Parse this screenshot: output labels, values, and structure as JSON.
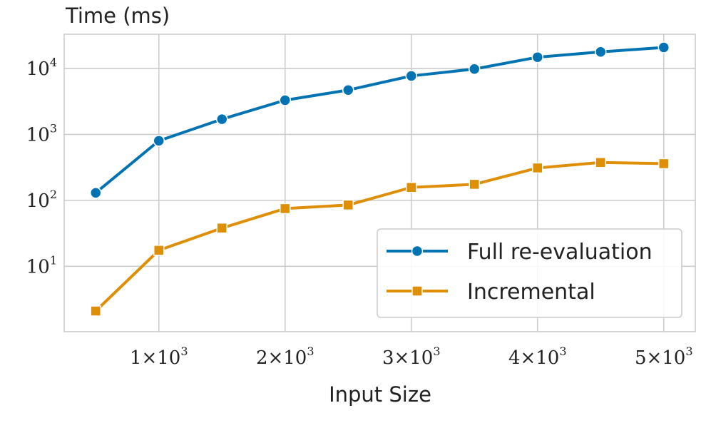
{
  "chart_data": {
    "type": "line",
    "title": "",
    "xlabel": "Input Size",
    "ylabel": "Time (ms)",
    "yscale": "log",
    "grid": true,
    "legend_position": "lower-right",
    "xlim": [
      250,
      5250
    ],
    "ylim": [
      1.02,
      33000
    ],
    "x_ticks": [
      {
        "value": 1000,
        "mant": "1×10",
        "exp": "3"
      },
      {
        "value": 2000,
        "mant": "2×10",
        "exp": "3"
      },
      {
        "value": 3000,
        "mant": "3×10",
        "exp": "3"
      },
      {
        "value": 4000,
        "mant": "4×10",
        "exp": "3"
      },
      {
        "value": 5000,
        "mant": "5×10",
        "exp": "3"
      }
    ],
    "y_ticks": [
      {
        "value": 10,
        "mant": "10",
        "exp": "1"
      },
      {
        "value": 100,
        "mant": "10",
        "exp": "2"
      },
      {
        "value": 1000,
        "mant": "10",
        "exp": "3"
      },
      {
        "value": 10000,
        "mant": "10",
        "exp": "4"
      }
    ],
    "x": [
      500,
      1000,
      1500,
      2000,
      2500,
      3000,
      3500,
      4000,
      4500,
      5000
    ],
    "series": [
      {
        "name": "Full re-evaluation",
        "color": "#0173b2",
        "marker": "circle",
        "values": [
          130,
          800,
          1700,
          3300,
          4700,
          7700,
          9800,
          14800,
          17800,
          20800
        ]
      },
      {
        "name": "Incremental",
        "color": "#de8f05",
        "marker": "square",
        "values": [
          2.1,
          17.5,
          38,
          75,
          85,
          157,
          175,
          310,
          375,
          360
        ]
      }
    ]
  }
}
